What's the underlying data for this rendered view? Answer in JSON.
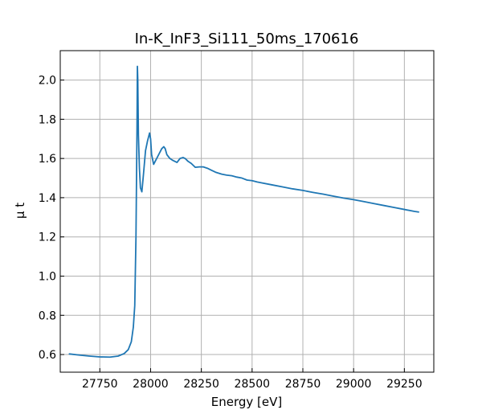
{
  "chart_data": {
    "type": "line",
    "title": "In-K_InF3_Si111_50ms_170616",
    "xlabel": "Energy [eV]",
    "ylabel": "μ t",
    "xlim": [
      27555,
      29395
    ],
    "ylim": [
      0.51,
      2.15
    ],
    "xticks": [
      27750,
      28000,
      28250,
      28500,
      28750,
      29000,
      29250
    ],
    "yticks": [
      0.6,
      0.8,
      1.0,
      1.2,
      1.4,
      1.6,
      1.8,
      2.0
    ],
    "xtick_labels": [
      "27750",
      "28000",
      "28250",
      "28500",
      "28750",
      "29000",
      "29250"
    ],
    "ytick_labels": [
      "0.6",
      "0.8",
      "1.0",
      "1.2",
      "1.4",
      "1.6",
      "1.8",
      "2.0"
    ],
    "grid": true,
    "series": [
      {
        "color": "#1f77b4",
        "x": [
          27600,
          27650,
          27700,
          27750,
          27800,
          27840,
          27870,
          27890,
          27905,
          27915,
          27922,
          27928,
          27933,
          27935,
          27937,
          27940,
          27945,
          27950,
          27957,
          27965,
          27975,
          27985,
          27995,
          28000,
          28005,
          28015,
          28025,
          28040,
          28055,
          28065,
          28072,
          28080,
          28095,
          28110,
          28130,
          28145,
          28160,
          28170,
          28185,
          28200,
          28220,
          28240,
          28260,
          28280,
          28300,
          28320,
          28350,
          28375,
          28400,
          28425,
          28450,
          28475,
          28500,
          28525,
          28550,
          28600,
          28650,
          28700,
          28750,
          28800,
          28850,
          28900,
          28950,
          29000,
          29050,
          29100,
          29150,
          29200,
          29250,
          29300,
          29320
        ],
        "y": [
          0.603,
          0.597,
          0.592,
          0.588,
          0.587,
          0.592,
          0.605,
          0.625,
          0.665,
          0.74,
          0.85,
          1.2,
          1.75,
          2.07,
          2.0,
          1.72,
          1.55,
          1.45,
          1.43,
          1.52,
          1.64,
          1.69,
          1.73,
          1.7,
          1.62,
          1.57,
          1.59,
          1.62,
          1.65,
          1.66,
          1.65,
          1.62,
          1.6,
          1.59,
          1.58,
          1.6,
          1.605,
          1.6,
          1.585,
          1.575,
          1.555,
          1.557,
          1.557,
          1.55,
          1.54,
          1.53,
          1.52,
          1.515,
          1.512,
          1.505,
          1.5,
          1.49,
          1.487,
          1.48,
          1.475,
          1.465,
          1.455,
          1.445,
          1.437,
          1.427,
          1.418,
          1.408,
          1.398,
          1.39,
          1.38,
          1.37,
          1.36,
          1.35,
          1.34,
          1.33,
          1.327
        ]
      }
    ]
  }
}
